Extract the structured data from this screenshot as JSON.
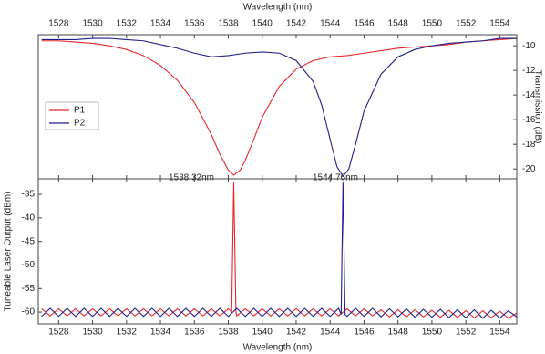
{
  "chart_data": [
    {
      "type": "line",
      "x_label": "Wavelength (nm)",
      "y_label": "Transmission (dB)",
      "x_axis_position": "top",
      "y_axis_position": "right",
      "xlim": [
        1526.8,
        1555
      ],
      "xticks": [
        1528,
        1530,
        1532,
        1534,
        1536,
        1538,
        1540,
        1542,
        1544,
        1546,
        1548,
        1550,
        1552,
        1554
      ],
      "ylim": [
        -20.8,
        -9.1
      ],
      "yticks": [
        -10,
        -12,
        -14,
        -16,
        -18,
        -20
      ],
      "legend": "left",
      "annotations": [
        "1538.32nm",
        "1544.76nm"
      ],
      "series": [
        {
          "name": "P1",
          "color": "#e8262b",
          "x": [
            1527,
            1528,
            1529,
            1530,
            1531,
            1532,
            1533,
            1534,
            1535,
            1536,
            1537,
            1537.5,
            1538,
            1538.32,
            1538.7,
            1539,
            1539.5,
            1540,
            1541,
            1542,
            1543,
            1544,
            1545,
            1546,
            1547,
            1548,
            1549,
            1550,
            1551,
            1552,
            1553,
            1554,
            1555
          ],
          "values": [
            -9.6,
            -9.6,
            -9.7,
            -9.8,
            -10.0,
            -10.3,
            -10.8,
            -11.6,
            -12.8,
            -14.6,
            -17.2,
            -18.8,
            -20.1,
            -20.5,
            -20.1,
            -19.3,
            -17.6,
            -15.8,
            -13.3,
            -11.9,
            -11.2,
            -10.9,
            -10.8,
            -10.6,
            -10.4,
            -10.2,
            -10.1,
            -10.0,
            -9.9,
            -9.7,
            -9.6,
            -9.5,
            -9.4
          ]
        },
        {
          "name": "P2",
          "color": "#1f1f8f",
          "x": [
            1527,
            1528,
            1529,
            1530,
            1531,
            1532,
            1533,
            1534,
            1535,
            1536,
            1537,
            1538,
            1539,
            1540,
            1541,
            1542,
            1543,
            1543.5,
            1544,
            1544.4,
            1544.76,
            1545.1,
            1545.5,
            1546,
            1547,
            1548,
            1549,
            1550,
            1551,
            1552,
            1553,
            1554,
            1555
          ],
          "values": [
            -9.5,
            -9.5,
            -9.5,
            -9.4,
            -9.4,
            -9.5,
            -9.6,
            -9.9,
            -10.2,
            -10.6,
            -10.9,
            -10.8,
            -10.6,
            -10.5,
            -10.6,
            -11.2,
            -12.9,
            -14.8,
            -17.6,
            -19.8,
            -20.6,
            -20.0,
            -18.0,
            -15.3,
            -12.3,
            -10.9,
            -10.3,
            -10.0,
            -9.8,
            -9.7,
            -9.6,
            -9.4,
            -9.4
          ]
        }
      ]
    },
    {
      "type": "line",
      "x_label": "Wavelength (nm)",
      "y_label": "Tuneable Laser Output (dBm)",
      "x_axis_position": "bottom",
      "y_axis_position": "left",
      "xlim": [
        1526.8,
        1555
      ],
      "xticks": [
        1528,
        1530,
        1532,
        1534,
        1536,
        1538,
        1540,
        1542,
        1544,
        1546,
        1548,
        1550,
        1552,
        1554
      ],
      "ylim": [
        -62.5,
        -31.7
      ],
      "yticks": [
        -35,
        -40,
        -45,
        -50,
        -55,
        -60
      ],
      "series": [
        {
          "name": "P1",
          "color": "#e8262b",
          "x": [
            1527,
            1527.5,
            1528,
            1528.5,
            1529,
            1529.5,
            1530,
            1530.5,
            1531,
            1531.5,
            1532,
            1532.5,
            1533,
            1533.5,
            1534,
            1534.5,
            1535,
            1535.5,
            1536,
            1536.5,
            1537,
            1537.5,
            1538,
            1538.2,
            1538.32,
            1538.45,
            1538.5,
            1539,
            1539.5,
            1540,
            1540.5,
            1541,
            1541.5,
            1542,
            1542.5,
            1543,
            1543.5,
            1544,
            1544.5,
            1545,
            1545.5,
            1546,
            1546.5,
            1547,
            1547.5,
            1548,
            1548.5,
            1549,
            1549.5,
            1550,
            1550.5,
            1551,
            1551.5,
            1552,
            1552.5,
            1553,
            1553.5,
            1554,
            1554.5,
            1555
          ],
          "values": [
            -59.3,
            -60.8,
            -59.3,
            -60.8,
            -59.3,
            -60.8,
            -59.3,
            -60.8,
            -59.3,
            -60.8,
            -59.3,
            -60.8,
            -59.3,
            -60.8,
            -59.3,
            -60.8,
            -59.3,
            -60.8,
            -59.3,
            -60.8,
            -59.3,
            -60.8,
            -59.3,
            -60,
            -32.5,
            -60,
            -60.8,
            -59.3,
            -60.8,
            -59.3,
            -60.8,
            -59.3,
            -60.8,
            -59.3,
            -60.8,
            -59.3,
            -60.8,
            -59.3,
            -60.8,
            -59.3,
            -60.8,
            -59.3,
            -60.8,
            -59.5,
            -61,
            -59.5,
            -61,
            -59.5,
            -61,
            -59.6,
            -61.1,
            -59.6,
            -61.1,
            -59.7,
            -61.2,
            -59.7,
            -61.2,
            -59.8,
            -61.3,
            -60.2
          ]
        },
        {
          "name": "P2",
          "color": "#1f1f8f",
          "x": [
            1527,
            1527.5,
            1528,
            1528.5,
            1529,
            1529.5,
            1530,
            1530.5,
            1531,
            1531.5,
            1532,
            1532.5,
            1533,
            1533.5,
            1534,
            1534.5,
            1535,
            1535.5,
            1536,
            1536.5,
            1537,
            1537.5,
            1538,
            1538.5,
            1539,
            1539.5,
            1540,
            1540.5,
            1541,
            1541.5,
            1542,
            1542.5,
            1543,
            1543.5,
            1544,
            1544.5,
            1544.65,
            1544.76,
            1544.88,
            1545,
            1545.5,
            1546,
            1546.5,
            1547,
            1547.5,
            1548,
            1548.5,
            1549,
            1549.5,
            1550,
            1550.5,
            1551,
            1551.5,
            1552,
            1552.5,
            1553,
            1553.5,
            1554,
            1554.5,
            1555
          ],
          "values": [
            -60.9,
            -59.2,
            -60.9,
            -59.2,
            -60.9,
            -59.2,
            -60.9,
            -59.2,
            -60.9,
            -59.2,
            -60.9,
            -59.2,
            -60.9,
            -59.2,
            -60.9,
            -59.2,
            -60.9,
            -59.2,
            -60.9,
            -59.2,
            -60.9,
            -59.2,
            -60.9,
            -59.2,
            -60.9,
            -59.2,
            -60.9,
            -59.2,
            -60.9,
            -59.2,
            -60.9,
            -59.2,
            -60.9,
            -59.2,
            -60.9,
            -59.2,
            -60.5,
            -32.5,
            -60.5,
            -60.9,
            -59.2,
            -60.9,
            -59.2,
            -61,
            -59.3,
            -61,
            -59.3,
            -61.1,
            -59.4,
            -61.1,
            -59.4,
            -61.2,
            -59.5,
            -61.2,
            -59.5,
            -61.3,
            -59.6,
            -61.3,
            -59.7,
            -61
          ]
        }
      ]
    }
  ]
}
